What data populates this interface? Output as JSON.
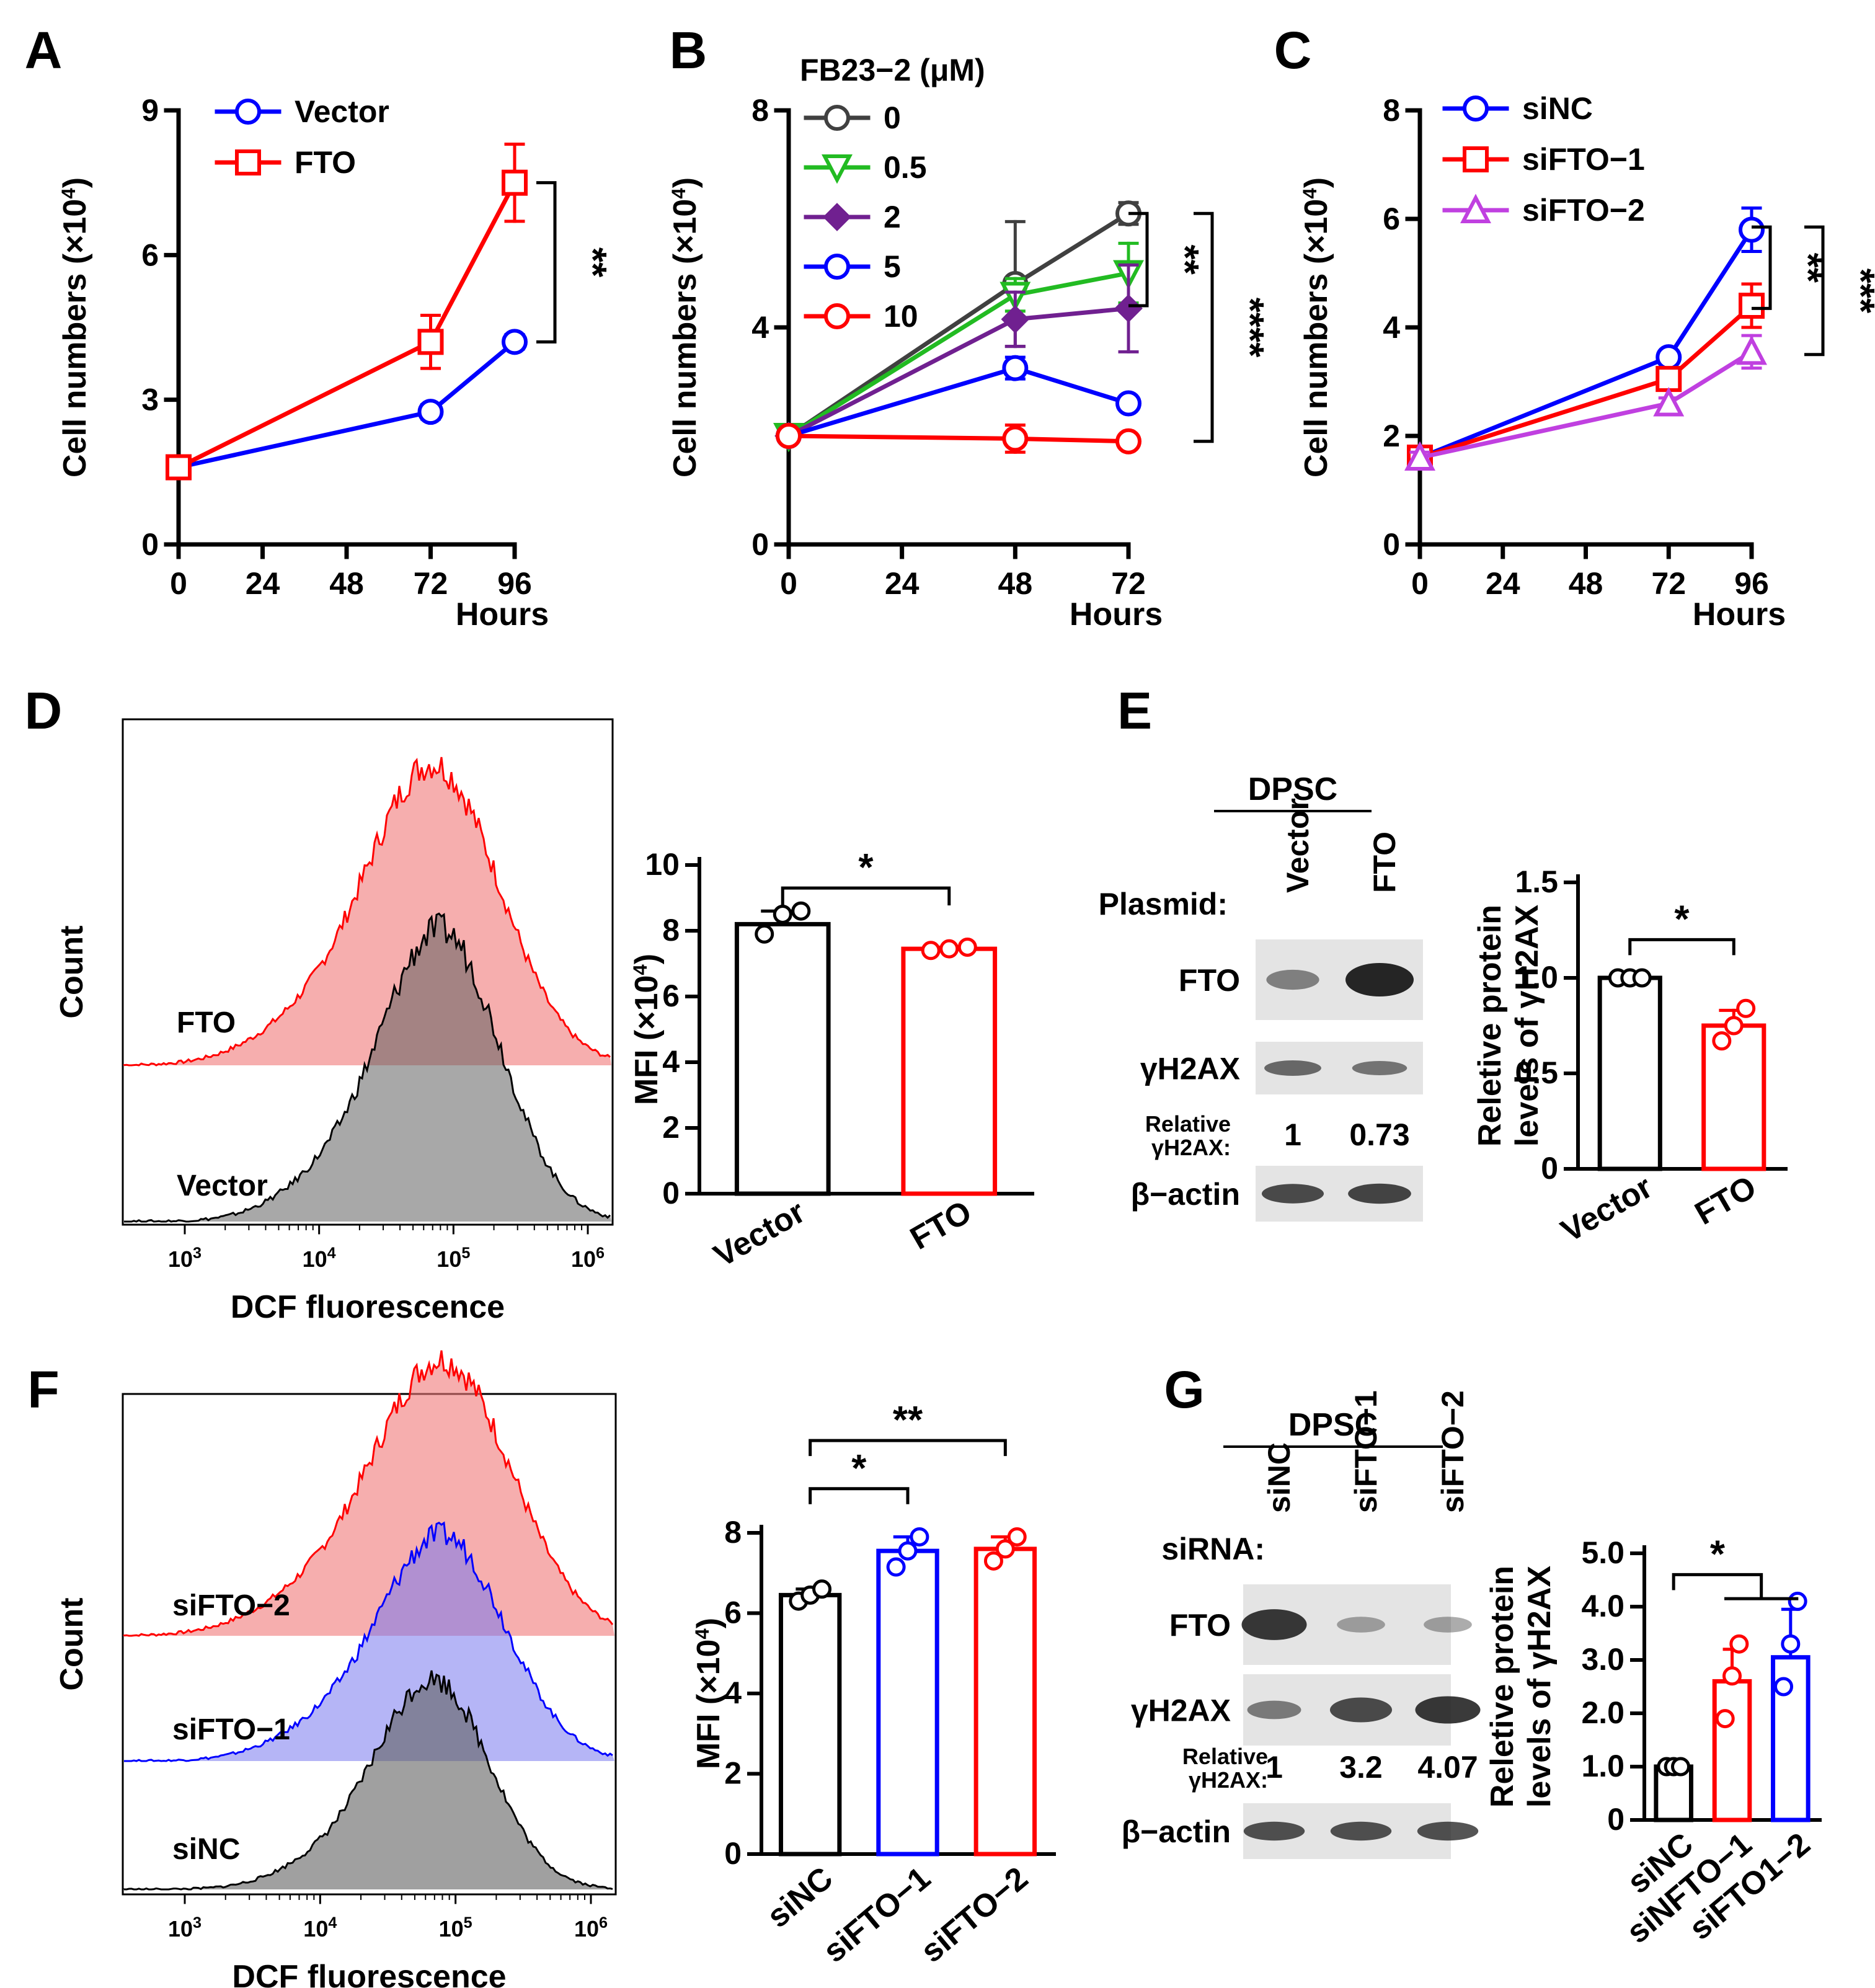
{
  "chart_data": [
    {
      "panel": "A",
      "type": "line",
      "xlabel": "Hours",
      "ylabel_main": "Cell numbers (×10",
      "ylabel_exp": "4",
      "ylabel_close": ")",
      "xticks": [
        "0",
        "24",
        "48",
        "72",
        "96"
      ],
      "yticks": [
        "0",
        "3",
        "6",
        "9"
      ],
      "xlim": [
        0,
        96
      ],
      "ylim": [
        0,
        9
      ],
      "series": [
        {
          "name": "Vector",
          "color": "#0000ff",
          "marker": "circle",
          "x": [
            0,
            72,
            96
          ],
          "y": [
            1.6,
            2.75,
            4.2
          ],
          "err": [
            0.1,
            0.15,
            0.15
          ]
        },
        {
          "name": "FTO",
          "color": "#ff0000",
          "marker": "square",
          "x": [
            0,
            72,
            96
          ],
          "y": [
            1.6,
            4.2,
            7.5
          ],
          "err": [
            0.1,
            0.55,
            0.8
          ]
        }
      ],
      "significance": [
        "**"
      ]
    },
    {
      "panel": "B",
      "type": "line",
      "xlabel": "Hours",
      "ylabel_main": "Cell numbers (×10",
      "ylabel_exp": "4",
      "ylabel_close": ")",
      "legend_title": "FB23−2 (μM)",
      "xticks": [
        "0",
        "24",
        "48",
        "72"
      ],
      "yticks": [
        "0",
        "4",
        "8"
      ],
      "xlim": [
        0,
        72
      ],
      "ylim": [
        0,
        8
      ],
      "series": [
        {
          "name": "0",
          "color": "#404040",
          "marker": "circle",
          "x": [
            0,
            48,
            72
          ],
          "y": [
            2.0,
            4.8,
            6.1
          ],
          "err": [
            0.05,
            1.15,
            0.2
          ]
        },
        {
          "name": "0.5",
          "color": "#22bb22",
          "marker": "triangle-down",
          "x": [
            0,
            48,
            72
          ],
          "y": [
            2.0,
            4.6,
            5.0
          ],
          "err": [
            0.05,
            0.3,
            0.55
          ]
        },
        {
          "name": "2",
          "color": "#702090",
          "marker": "diamond",
          "x": [
            0,
            48,
            72
          ],
          "y": [
            2.0,
            4.15,
            4.35
          ],
          "err": [
            0.05,
            0.5,
            0.8
          ]
        },
        {
          "name": "5",
          "color": "#0000ff",
          "marker": "circle",
          "x": [
            0,
            48,
            72
          ],
          "y": [
            2.0,
            3.25,
            2.6
          ],
          "err": [
            0.05,
            0.2,
            0.1
          ]
        },
        {
          "name": "10",
          "color": "#ff0000",
          "marker": "circle",
          "x": [
            0,
            48,
            72
          ],
          "y": [
            2.0,
            1.95,
            1.9
          ],
          "err": [
            0.05,
            0.25,
            0.1
          ]
        }
      ],
      "significance": [
        "**",
        "****"
      ]
    },
    {
      "panel": "C",
      "type": "line",
      "xlabel": "Hours",
      "ylabel_main": "Cell numbers (×10",
      "ylabel_exp": "4",
      "ylabel_close": ")",
      "xticks": [
        "0",
        "24",
        "48",
        "72",
        "96"
      ],
      "yticks": [
        "0",
        "2",
        "4",
        "6",
        "8"
      ],
      "xlim": [
        0,
        96
      ],
      "ylim": [
        0,
        8
      ],
      "series": [
        {
          "name": "siNC",
          "color": "#0000ff",
          "marker": "circle",
          "x": [
            0,
            72,
            96
          ],
          "y": [
            1.6,
            3.45,
            5.8
          ],
          "err": [
            0.1,
            0.1,
            0.4
          ]
        },
        {
          "name": "siFTO−1",
          "color": "#ff0000",
          "marker": "square",
          "x": [
            0,
            72,
            96
          ],
          "y": [
            1.6,
            3.05,
            4.4
          ],
          "err": [
            0.1,
            0.1,
            0.4
          ]
        },
        {
          "name": "siFTO−2",
          "color": "#c040e0",
          "marker": "triangle",
          "x": [
            0,
            72,
            96
          ],
          "y": [
            1.6,
            2.6,
            3.55
          ],
          "err": [
            0.1,
            0.1,
            0.3
          ]
        }
      ],
      "significance": [
        "**",
        "***"
      ]
    },
    {
      "panel": "D",
      "type": "bar",
      "xlabel": "DCF fluorescence",
      "hist_ylabel": "Count",
      "hist_xticks": [
        [
          "10",
          "3"
        ],
        [
          "10",
          "4"
        ],
        [
          "10",
          "5"
        ],
        [
          "10",
          "6"
        ]
      ],
      "hist_labels": [
        "FTO",
        "Vector"
      ],
      "ylabel_main": "MFI (×10",
      "ylabel_exp": "4",
      "ylabel_close": ")",
      "categories": [
        "Vector",
        "FTO"
      ],
      "values": [
        8.2,
        7.45
      ],
      "errors": [
        0.4,
        0.05
      ],
      "points": [
        [
          7.9,
          8.5,
          8.6
        ],
        [
          7.4,
          7.45,
          7.5
        ]
      ],
      "colors": [
        "#000000",
        "#ff0000"
      ],
      "yticks": [
        "0",
        "2",
        "4",
        "6",
        "8",
        "10"
      ],
      "ylim": [
        0,
        10
      ],
      "significance": [
        "*"
      ]
    },
    {
      "panel": "E",
      "type": "bar",
      "blot_title": "DPSC",
      "blot_row_label": "Plasmid:",
      "blot_lanes": [
        "Vector",
        "FTO"
      ],
      "blot_bands": [
        "FTO",
        "γH2AX",
        "β−actin"
      ],
      "relative_label_1": "Relative",
      "relative_label_2": "γH2AX:",
      "relative_values": [
        "1",
        "0.73"
      ],
      "ylabel_line1": "Reletive protein",
      "ylabel_line2": "levels of γH2AX",
      "categories": [
        "Vector",
        "FTO"
      ],
      "values": [
        1.0,
        0.75
      ],
      "errors": [
        0.0,
        0.08
      ],
      "points": [
        [
          1.0,
          1.0,
          1.0
        ],
        [
          0.67,
          0.75,
          0.84
        ]
      ],
      "colors": [
        "#000000",
        "#ff0000"
      ],
      "yticks": [
        "0",
        "0.5",
        "1.0",
        "1.5"
      ],
      "ylim": [
        0,
        1.5
      ],
      "significance": [
        "*"
      ]
    },
    {
      "panel": "F",
      "type": "bar",
      "xlabel": "DCF fluorescence",
      "hist_ylabel": "Count",
      "hist_xticks": [
        [
          "10",
          "3"
        ],
        [
          "10",
          "4"
        ],
        [
          "10",
          "5"
        ],
        [
          "10",
          "6"
        ]
      ],
      "hist_labels": [
        "siFTO−2",
        "siFTO−1",
        "siNC"
      ],
      "ylabel_main": "MFI (×10",
      "ylabel_exp": "4",
      "ylabel_close": ")",
      "categories": [
        "siNC",
        "siFTO−1",
        "siFTO−2"
      ],
      "values": [
        6.45,
        7.55,
        7.6
      ],
      "errors": [
        0.15,
        0.35,
        0.3
      ],
      "points": [
        [
          6.3,
          6.45,
          6.6
        ],
        [
          7.15,
          7.55,
          7.9
        ],
        [
          7.3,
          7.6,
          7.9
        ]
      ],
      "colors": [
        "#000000",
        "#0000ff",
        "#ff0000"
      ],
      "yticks": [
        "0",
        "2",
        "4",
        "6",
        "8"
      ],
      "ylim": [
        0,
        8
      ],
      "significance": [
        "*",
        "**"
      ]
    },
    {
      "panel": "G",
      "type": "bar",
      "blot_title": "DPSC",
      "blot_row_label": "siRNA:",
      "blot_lanes": [
        "siNC",
        "siFTO−1",
        "siFTO−2"
      ],
      "blot_bands": [
        "FTO",
        "γH2AX",
        "β−actin"
      ],
      "relative_label_1": "Relative",
      "relative_label_2": "γH2AX:",
      "relative_values": [
        "1",
        "3.2",
        "4.07"
      ],
      "ylabel_line1": "Reletive protein",
      "ylabel_line2": "levels of γH2AX",
      "categories": [
        "siNC",
        "siNFTO−1",
        "siFTO1−2"
      ],
      "values": [
        1.0,
        2.6,
        3.05
      ],
      "errors": [
        0.0,
        0.6,
        0.9
      ],
      "points": [
        [
          1.0,
          1.0,
          1.0
        ],
        [
          1.9,
          2.7,
          3.3
        ],
        [
          2.5,
          3.3,
          4.1
        ]
      ],
      "colors": [
        "#000000",
        "#ff0000",
        "#0000ff"
      ],
      "yticks": [
        "0",
        "1.0",
        "2.0",
        "3.0",
        "4.0",
        "5.0"
      ],
      "ylim": [
        0,
        5
      ],
      "significance": [
        "*"
      ]
    }
  ],
  "panel_letters": [
    "A",
    "B",
    "C",
    "D",
    "E",
    "F",
    "G"
  ]
}
